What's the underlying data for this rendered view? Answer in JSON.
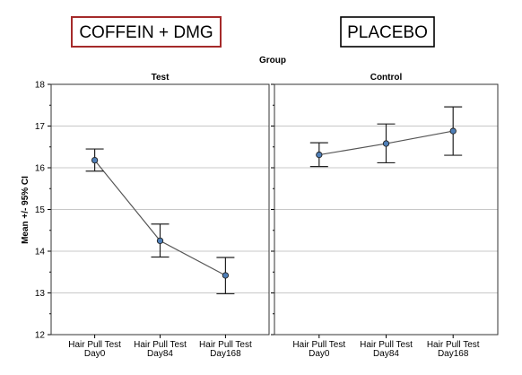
{
  "labels": {
    "caffeine_box": "COFFEIN + DMG",
    "placebo_box": "PLACEBO"
  },
  "colors": {
    "caffeine_border": "#a52a2a",
    "placebo_border": "#000000",
    "marker_fill": "#4f7fb8",
    "line": "#555555",
    "gridline": "#c8c8c8"
  },
  "chart_data": {
    "type": "line",
    "title": "Group",
    "ylabel": "Mean +/- 95% CI",
    "xlabel": "",
    "ylim": [
      12,
      18
    ],
    "yticks": [
      12,
      13,
      14,
      15,
      16,
      17,
      18
    ],
    "grid": true,
    "categories": [
      [
        "Hair Pull Test",
        "Day0"
      ],
      [
        "Hair Pull Test",
        "Day84"
      ],
      [
        "Hair Pull Test",
        "Day168"
      ]
    ],
    "panels": [
      {
        "name": "Test",
        "mean": [
          16.18,
          14.25,
          13.42
        ],
        "ci_low": [
          15.92,
          13.86,
          12.98
        ],
        "ci_high": [
          16.45,
          14.65,
          13.85
        ]
      },
      {
        "name": "Control",
        "mean": [
          16.31,
          16.58,
          16.88
        ],
        "ci_low": [
          16.03,
          16.12,
          16.3
        ],
        "ci_high": [
          16.6,
          17.05,
          17.46
        ]
      }
    ]
  }
}
